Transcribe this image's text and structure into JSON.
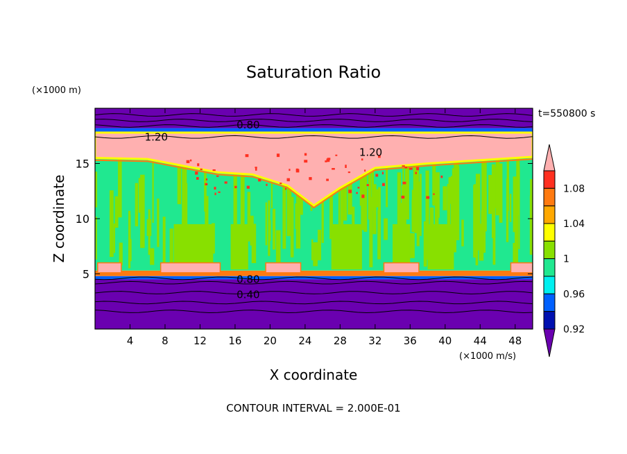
{
  "chart_data": {
    "type": "heatmap",
    "title": "Saturation Ratio",
    "xlabel": "X coordinate",
    "ylabel": "Z coordinate",
    "x_unit": "(×1000 m/s)",
    "y_unit": "(×1000 m)",
    "time_label": "t=550800 s",
    "footer": "CONTOUR INTERVAL = 2.000E-01",
    "xlim": [
      0,
      50
    ],
    "ylim": [
      0,
      20
    ],
    "x_ticks": [
      4,
      8,
      12,
      16,
      20,
      24,
      28,
      32,
      36,
      40,
      44,
      48
    ],
    "y_ticks": [
      5,
      10,
      15
    ],
    "contour_labels": [
      {
        "text": "0.80",
        "x": 17.5,
        "z": 18.5
      },
      {
        "text": "1.20",
        "x": 7,
        "z": 17.4
      },
      {
        "text": "1.20",
        "x": 31.5,
        "z": 16.0
      },
      {
        "text": "0.80",
        "x": 17.5,
        "z": 4.5
      },
      {
        "text": "0.40",
        "x": 17.5,
        "z": 3.1
      }
    ],
    "colorbar": {
      "tick_labels": [
        "1.08",
        "1.04",
        "1",
        "0.96",
        "0.92"
      ],
      "levels_top_to_bottom": [
        {
          "color": "#ffb0b0",
          "label": ""
        },
        {
          "color": "#ff3020",
          "label": "1.08"
        },
        {
          "color": "#ff7a10",
          "label": ""
        },
        {
          "color": "#ffa800",
          "label": "1.04"
        },
        {
          "color": "#ffff00",
          "label": ""
        },
        {
          "color": "#88e000",
          "label": "1"
        },
        {
          "color": "#20e890",
          "label": ""
        },
        {
          "color": "#00f0f0",
          "label": "0.96"
        },
        {
          "color": "#0060ff",
          "label": ""
        },
        {
          "color": "#0010b0",
          "label": "0.92"
        },
        {
          "color": "#6a00b0",
          "label": ""
        }
      ]
    },
    "field_bands": [
      {
        "z_from": 0,
        "z_to": 4.5,
        "color": "#6a00b0"
      },
      {
        "z_from": 4.5,
        "z_to": 4.8,
        "color": "#0060ff"
      },
      {
        "z_from": 4.8,
        "z_to": 5.3,
        "color": "#ff7a10"
      },
      {
        "z_from": 5.3,
        "z_to": 15.5,
        "color": "#20e890"
      },
      {
        "z_from": 15.5,
        "z_to": 17.8,
        "color": "#ffb0b0"
      },
      {
        "z_from": 17.8,
        "z_to": 18.2,
        "color": "#0060ff"
      },
      {
        "z_from": 18.2,
        "z_to": 20,
        "color": "#6a00b0"
      }
    ]
  }
}
